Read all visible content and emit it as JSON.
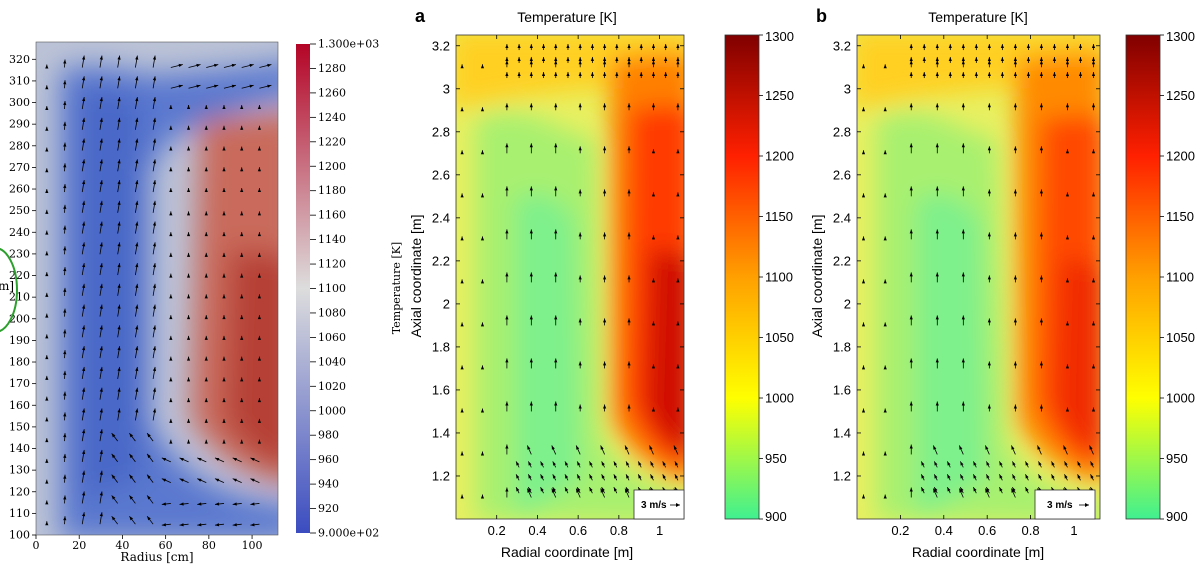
{
  "chart_data": [
    {
      "type": "heatmap",
      "panel_label": "",
      "title": "",
      "xlabel": "Radius [cm]",
      "ylabel": "",
      "ylabel_fragment": "m]",
      "x_ticks": [
        0,
        20,
        40,
        60,
        80,
        100
      ],
      "y_ticks": [
        100,
        110,
        120,
        130,
        140,
        150,
        160,
        170,
        180,
        190,
        200,
        210,
        220,
        230,
        240,
        250,
        260,
        270,
        280,
        290,
        300,
        310,
        320
      ],
      "xlim": [
        0,
        112
      ],
      "ylim": [
        100,
        328
      ],
      "colorbar_label": "Temperature [K]",
      "colorbar_ticks": [
        "9.000e+02",
        "920",
        "940",
        "960",
        "980",
        "1000",
        "1020",
        "1040",
        "1060",
        "1080",
        "1100",
        "1120",
        "1140",
        "1160",
        "1180",
        "1200",
        "1220",
        "1240",
        "1260",
        "1280",
        "1.300e+03"
      ],
      "colorbar_range": [
        900,
        1300
      ],
      "colormap": [
        "#3b4cc0",
        "#dddddd",
        "#b40426"
      ],
      "hot_region": {
        "r_min": 65,
        "r_max": 112,
        "z_min": 118,
        "z_max": 300,
        "peak_temperature": 1255
      },
      "cool_region": {
        "r_min": 10,
        "r_max": 60,
        "z_min": 112,
        "z_max": 315,
        "temperature": 965
      },
      "annotation_circle_color": "#2ca02c"
    },
    {
      "type": "heatmap",
      "panel_label": "a",
      "title": "Temperature [K]",
      "xlabel": "Radial coordinate [m]",
      "ylabel": "Axial coordinate [m]",
      "x_ticks": [
        "0.2",
        "0.4",
        "0.6",
        "0.8",
        "1"
      ],
      "y_ticks": [
        "1.2",
        "1.4",
        "1.6",
        "1.8",
        "2",
        "2.2",
        "2.4",
        "2.6",
        "2.8",
        "3",
        "3.2"
      ],
      "xlim": [
        0,
        1.12
      ],
      "ylim": [
        1.0,
        3.25
      ],
      "colorbar_ticks": [
        "900",
        "950",
        "1000",
        "1050",
        "1100",
        "1150",
        "1200",
        "1250",
        "1300"
      ],
      "colorbar_range": [
        900,
        1300
      ],
      "colormap": [
        "#40f090",
        "#ffff00",
        "#ffa000",
        "#ff2000",
        "#800000"
      ],
      "hot_region": {
        "r_min": 0.72,
        "r_max": 1.12,
        "z_min": 1.2,
        "z_max": 3.0,
        "peak_temperature": 1265
      },
      "vector_legend": "3 m/s"
    },
    {
      "type": "heatmap",
      "panel_label": "b",
      "title": "Temperature [K]",
      "xlabel": "Radial coordinate [m]",
      "ylabel": "Axial coordinate [m]",
      "x_ticks": [
        "0.2",
        "0.4",
        "0.6",
        "0.8",
        "1"
      ],
      "y_ticks": [
        "1.2",
        "1.4",
        "1.6",
        "1.8",
        "2",
        "2.2",
        "2.4",
        "2.6",
        "2.8",
        "3",
        "3.2"
      ],
      "xlim": [
        0,
        1.12
      ],
      "ylim": [
        1.0,
        3.25
      ],
      "colorbar_ticks": [
        "900",
        "950",
        "1000",
        "1050",
        "1100",
        "1150",
        "1200",
        "1250",
        "1300"
      ],
      "colorbar_range": [
        900,
        1300
      ],
      "colormap": [
        "#40f090",
        "#ffff00",
        "#ffa000",
        "#ff2000",
        "#800000"
      ],
      "hot_region": {
        "r_min": 0.74,
        "r_max": 1.12,
        "z_min": 1.2,
        "z_max": 3.0,
        "peak_temperature": 1225
      },
      "vector_legend": "3 m/s"
    }
  ]
}
